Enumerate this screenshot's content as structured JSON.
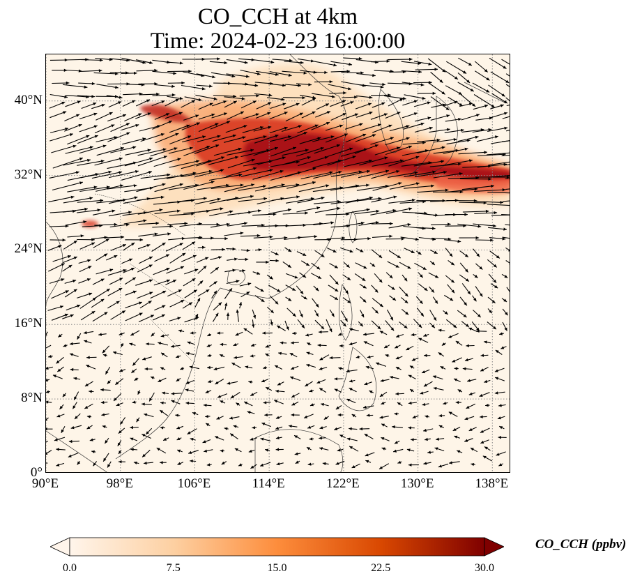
{
  "title_line1": "CO_CCH at 4km",
  "title_line2": "Time: 2024-02-23 16:00:00",
  "lat_ticks": [
    "40°N",
    "32°N",
    "24°N",
    "16°N",
    "8°N",
    "0°"
  ],
  "lon_ticks": [
    "90°E",
    "98°E",
    "106°E",
    "114°E",
    "122°E",
    "130°E",
    "138°E"
  ],
  "colorbar": {
    "label": "CO_CCH (ppbv)",
    "ticks": [
      "0.0",
      "7.5",
      "15.0",
      "22.5",
      "30.0"
    ],
    "colors": [
      "#fff5eb",
      "#fdd0a2",
      "#fd8d3c",
      "#d94801",
      "#7f0000"
    ],
    "extend": "both"
  },
  "colormap": "OrRd",
  "grid": "dotted",
  "wind_vectors": true
}
